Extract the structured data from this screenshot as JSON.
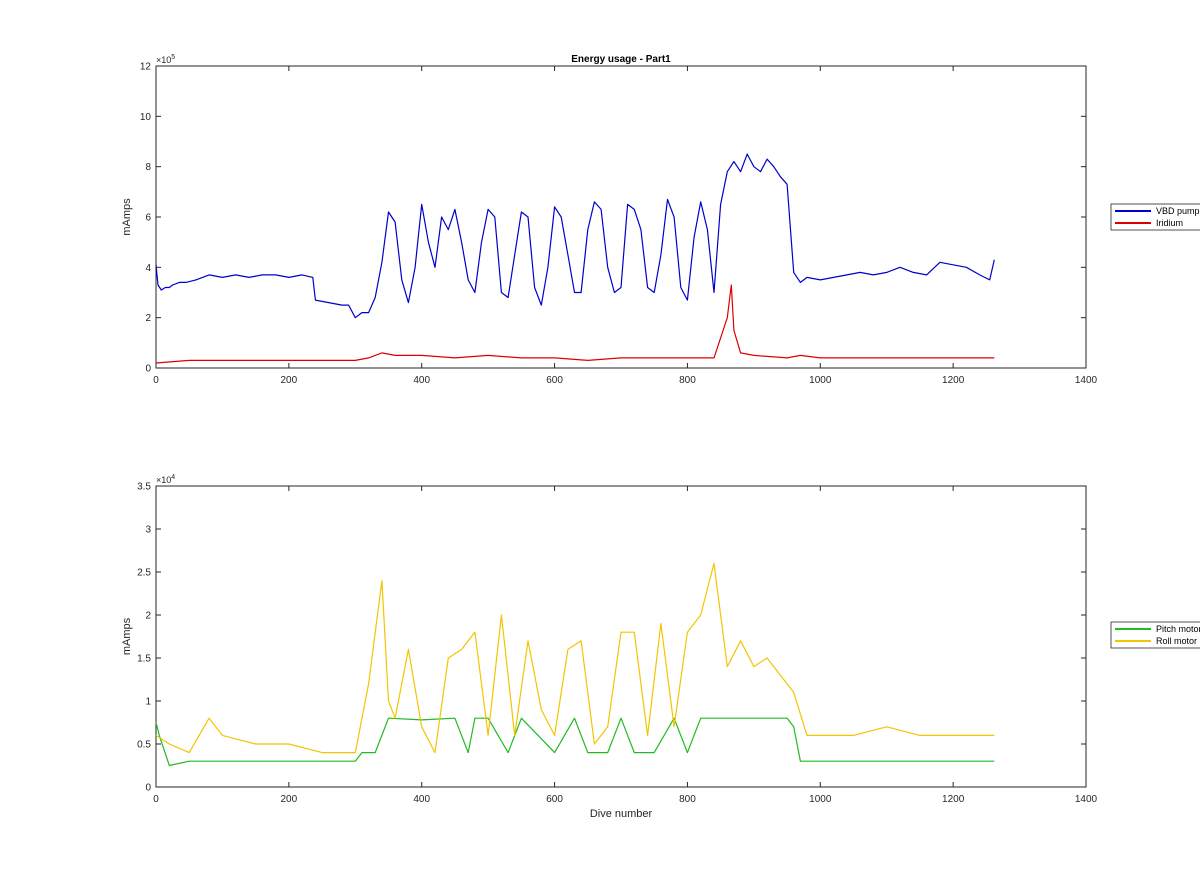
{
  "chart_data": [
    {
      "type": "line",
      "title": "Energy usage - Part1",
      "xlabel": "",
      "ylabel": "mAmps",
      "y_exponent_label": "×10",
      "y_exponent_power": "5",
      "xlim": [
        0,
        1400
      ],
      "ylim": [
        0,
        12
      ],
      "y_scale_factor": 100000,
      "xticks": [
        "0",
        "200",
        "400",
        "600",
        "800",
        "1000",
        "1200",
        "1400"
      ],
      "yticks": [
        "0",
        "2",
        "4",
        "6",
        "8",
        "10",
        "12"
      ],
      "legend_position": "outside-right",
      "series": [
        {
          "name": "VBD pump",
          "color": "#0000CC",
          "x": [
            0,
            3,
            8,
            14,
            20,
            25,
            35,
            45,
            60,
            80,
            100,
            120,
            140,
            160,
            180,
            200,
            220,
            236,
            240,
            260,
            280,
            290,
            300,
            310,
            320,
            330,
            340,
            350,
            360,
            370,
            380,
            390,
            400,
            410,
            420,
            430,
            440,
            450,
            460,
            470,
            480,
            490,
            500,
            510,
            520,
            530,
            540,
            550,
            560,
            570,
            580,
            590,
            600,
            610,
            620,
            630,
            640,
            650,
            660,
            670,
            680,
            690,
            700,
            710,
            720,
            730,
            740,
            750,
            760,
            770,
            780,
            790,
            800,
            810,
            820,
            830,
            840,
            850,
            860,
            870,
            880,
            890,
            900,
            910,
            920,
            930,
            940,
            950,
            960,
            970,
            980,
            1000,
            1020,
            1040,
            1060,
            1080,
            1100,
            1120,
            1140,
            1160,
            1180,
            1200,
            1220,
            1240,
            1255,
            1262
          ],
          "y": [
            4.1,
            3.3,
            3.1,
            3.2,
            3.2,
            3.3,
            3.4,
            3.4,
            3.5,
            3.7,
            3.6,
            3.7,
            3.6,
            3.7,
            3.7,
            3.6,
            3.7,
            3.6,
            2.7,
            2.6,
            2.5,
            2.5,
            2.0,
            2.2,
            2.2,
            2.8,
            4.2,
            6.2,
            5.8,
            3.5,
            2.6,
            4.0,
            6.5,
            5.0,
            4.0,
            6.0,
            5.5,
            6.3,
            5.0,
            3.5,
            3.0,
            5.0,
            6.3,
            6.0,
            3.0,
            2.8,
            4.5,
            6.2,
            6.0,
            3.2,
            2.5,
            4.0,
            6.4,
            6.0,
            4.5,
            3.0,
            3.0,
            5.5,
            6.6,
            6.3,
            4.0,
            3.0,
            3.2,
            6.5,
            6.3,
            5.5,
            3.2,
            3.0,
            4.5,
            6.7,
            6.0,
            3.2,
            2.7,
            5.2,
            6.6,
            5.5,
            3.0,
            6.5,
            7.8,
            8.2,
            7.8,
            8.5,
            8.0,
            7.8,
            8.3,
            8.0,
            7.6,
            7.3,
            3.8,
            3.4,
            3.6,
            3.5,
            3.6,
            3.7,
            3.8,
            3.7,
            3.8,
            4.0,
            3.8,
            3.7,
            4.2,
            4.1,
            4.0,
            3.7,
            3.5,
            4.3
          ]
        },
        {
          "name": "Iridium",
          "color": "#DD0000",
          "x": [
            0,
            50,
            100,
            150,
            200,
            250,
            300,
            320,
            340,
            360,
            380,
            400,
            450,
            500,
            550,
            600,
            650,
            700,
            750,
            800,
            840,
            860,
            866,
            870,
            880,
            900,
            950,
            970,
            1000,
            1050,
            1100,
            1150,
            1200,
            1250,
            1262
          ],
          "y": [
            0.2,
            0.3,
            0.3,
            0.3,
            0.3,
            0.3,
            0.3,
            0.4,
            0.6,
            0.5,
            0.5,
            0.5,
            0.4,
            0.5,
            0.4,
            0.4,
            0.3,
            0.4,
            0.4,
            0.4,
            0.4,
            2.0,
            3.3,
            1.5,
            0.6,
            0.5,
            0.4,
            0.5,
            0.4,
            0.4,
            0.4,
            0.4,
            0.4,
            0.4,
            0.4
          ]
        }
      ]
    },
    {
      "type": "line",
      "title": "",
      "xlabel": "Dive number",
      "ylabel": "mAmps",
      "y_exponent_label": "×10",
      "y_exponent_power": "4",
      "xlim": [
        0,
        1400
      ],
      "ylim": [
        0,
        3.5
      ],
      "y_scale_factor": 10000,
      "xticks": [
        "0",
        "200",
        "400",
        "600",
        "800",
        "1000",
        "1200",
        "1400"
      ],
      "yticks": [
        "0",
        "0.5",
        "1",
        "1.5",
        "2",
        "2.5",
        "3",
        "3.5"
      ],
      "legend_position": "outside-right",
      "series": [
        {
          "name": "Pitch motor",
          "color": "#22BB22",
          "x": [
            0,
            5,
            20,
            50,
            100,
            150,
            200,
            250,
            300,
            310,
            330,
            350,
            400,
            450,
            470,
            480,
            500,
            530,
            550,
            600,
            630,
            650,
            680,
            700,
            720,
            750,
            780,
            800,
            820,
            850,
            900,
            950,
            960,
            970,
            1000,
            1050,
            1100,
            1150,
            1200,
            1250,
            1262
          ],
          "y": [
            0.75,
            0.6,
            0.25,
            0.3,
            0.3,
            0.3,
            0.3,
            0.3,
            0.3,
            0.4,
            0.4,
            0.8,
            0.78,
            0.8,
            0.4,
            0.8,
            0.8,
            0.4,
            0.8,
            0.4,
            0.8,
            0.4,
            0.4,
            0.8,
            0.4,
            0.4,
            0.8,
            0.4,
            0.8,
            0.8,
            0.8,
            0.8,
            0.7,
            0.3,
            0.3,
            0.3,
            0.3,
            0.3,
            0.3,
            0.3,
            0.3
          ]
        },
        {
          "name": "Roll motor",
          "color": "#F2C500",
          "x": [
            0,
            20,
            50,
            80,
            100,
            150,
            200,
            250,
            300,
            320,
            340,
            350,
            360,
            380,
            400,
            420,
            440,
            460,
            480,
            500,
            520,
            540,
            560,
            580,
            600,
            620,
            640,
            660,
            680,
            700,
            720,
            740,
            760,
            780,
            800,
            820,
            840,
            860,
            880,
            900,
            920,
            940,
            960,
            980,
            1000,
            1050,
            1100,
            1150,
            1200,
            1250,
            1262
          ],
          "y": [
            0.6,
            0.5,
            0.4,
            0.8,
            0.6,
            0.5,
            0.5,
            0.4,
            0.4,
            1.2,
            2.4,
            1.0,
            0.8,
            1.6,
            0.7,
            0.4,
            1.5,
            1.6,
            1.8,
            0.6,
            2.0,
            0.6,
            1.7,
            0.9,
            0.6,
            1.6,
            1.7,
            0.5,
            0.7,
            1.8,
            1.8,
            0.6,
            1.9,
            0.7,
            1.8,
            2.0,
            2.6,
            1.4,
            1.7,
            1.4,
            1.5,
            1.3,
            1.1,
            0.6,
            0.6,
            0.6,
            0.7,
            0.6,
            0.6,
            0.6,
            0.6
          ]
        }
      ]
    }
  ]
}
